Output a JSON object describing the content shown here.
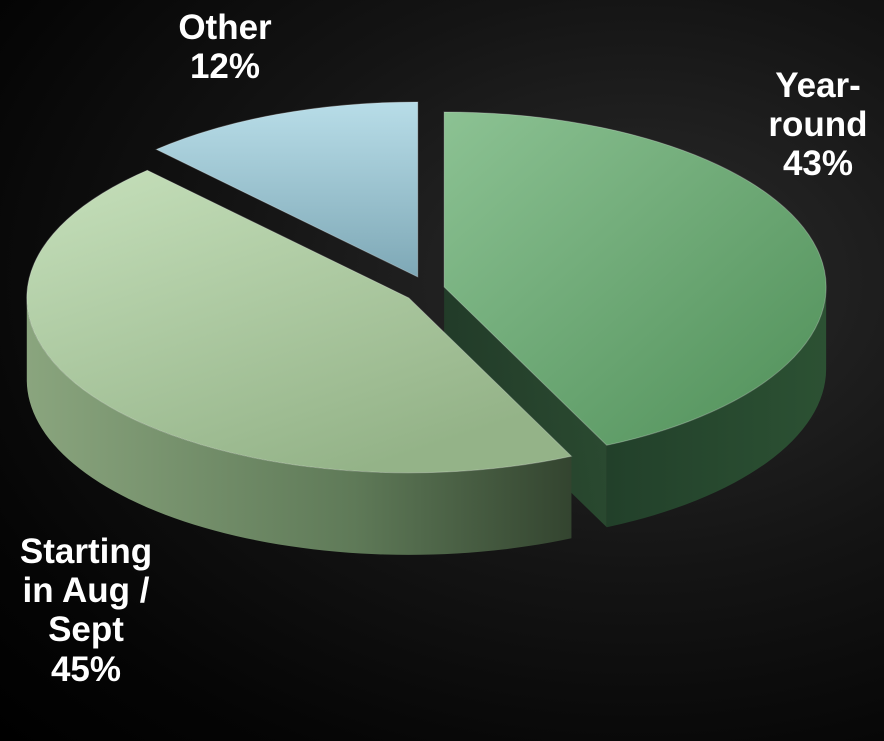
{
  "chart_data": {
    "type": "pie",
    "style": "3d-exploded",
    "slices": [
      {
        "name": "Year-round",
        "value": 43,
        "label_lines": [
          "Year-",
          "round",
          "43%"
        ],
        "color": "#6aa872",
        "side_color": "#2f5534"
      },
      {
        "name": "Starting in Aug / Sept",
        "value": 45,
        "label_lines": [
          "Starting",
          "in Aug /",
          "Sept",
          "45%"
        ],
        "color": "#b3d2a8",
        "side_color": "#5c7756"
      },
      {
        "name": "Other",
        "value": 12,
        "label_lines": [
          "Other",
          "12%"
        ],
        "color": "#a4cbd8",
        "side_color": "#4d6f7b"
      }
    ]
  }
}
